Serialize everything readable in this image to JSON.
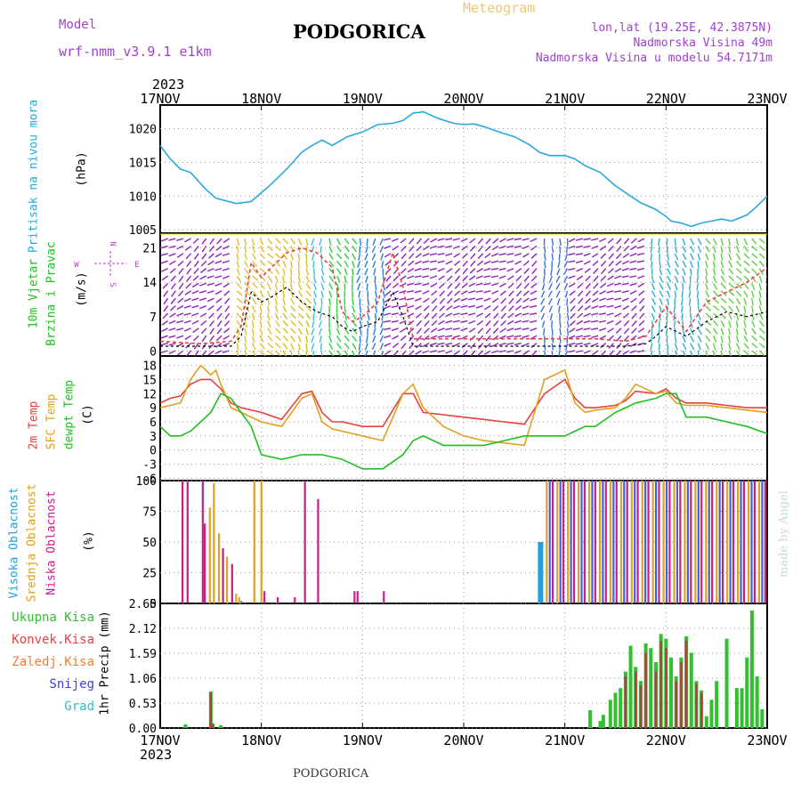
{
  "header": {
    "model_label": "Model",
    "model_name": "wrf-nmm_v3.9.1 e1km",
    "station": "PODGORICA",
    "product": "Meteogram",
    "lonlat": "lon,lat (19.25E, 42.3875N)",
    "elevation": "Nadmorska Visina 49m",
    "model_elevation": "Nadmorska Visina u modelu 54.7171m"
  },
  "footer": {
    "station": "PODGORICA",
    "credit": "made by Angel"
  },
  "colors": {
    "pressure": "#29a8e0",
    "temp2m": "#e84040",
    "sfc": "#e0a020",
    "dew": "#20c020",
    "high": "#20a0e0",
    "mid": "#e0a020",
    "low": "#c81e8c",
    "total": "#30c030",
    "conv": "#e84040",
    "frozen": "#f08030",
    "snow": "#4040e0",
    "hail": "#30c0c0"
  },
  "chart_data": [
    {
      "type": "line",
      "panel": "pressure",
      "year_label": "2023",
      "x_ticks": [
        "17NOV",
        "18NOV",
        "19NOV",
        "20NOV",
        "21NOV",
        "22NOV",
        "23NOV"
      ],
      "ylabel_main": "Pritisak na nivou mora",
      "ylabel_unit": "(hPa)",
      "ylim": [
        1004.5,
        1023.5
      ],
      "y_ticks": [
        1005,
        1010,
        1015,
        1020
      ],
      "x_unit": "days since 17NOV",
      "series": [
        {
          "color": "#29a8e0",
          "x": [
            0,
            0.1,
            0.2,
            0.3,
            0.45,
            0.55,
            0.65,
            0.75,
            0.9,
            1.0,
            1.1,
            1.25,
            1.4,
            1.5,
            1.6,
            1.7,
            1.85,
            2.0,
            2.15,
            2.3,
            2.4,
            2.5,
            2.6,
            2.75,
            2.9,
            3.0,
            3.1,
            3.2,
            3.35,
            3.5,
            3.65,
            3.75,
            3.85,
            4.0,
            4.1,
            4.2,
            4.35,
            4.5,
            4.6,
            4.75,
            4.9,
            5.0,
            5.05,
            5.15,
            5.25,
            5.35,
            5.45,
            5.55,
            5.65,
            5.8,
            5.9,
            6.0
          ],
          "y": [
            1017.5,
            1015.5,
            1014,
            1013.5,
            1011,
            1009.7,
            1009.3,
            1008.9,
            1009.2,
            1010.5,
            1011.8,
            1014,
            1016.5,
            1017.5,
            1018.3,
            1017.5,
            1018.8,
            1019.5,
            1020.6,
            1020.8,
            1021.2,
            1022.3,
            1022.5,
            1021.5,
            1020.8,
            1020.6,
            1020.7,
            1020.3,
            1019.5,
            1018.8,
            1017.6,
            1016.5,
            1016,
            1016,
            1015.5,
            1014.5,
            1013.5,
            1011.5,
            1010.5,
            1009,
            1008,
            1007,
            1006.3,
            1006,
            1005.5,
            1006,
            1006.3,
            1006.6,
            1006.3,
            1007.2,
            1008.5,
            1010
          ]
        }
      ]
    },
    {
      "type": "line",
      "panel": "wind",
      "ylabel_main": "10m Vjetar",
      "ylabel_sub": "Brzina i Pravac",
      "ylabel_unit": "(m/s)",
      "compass": {
        "n": "N",
        "e": "E",
        "s": "S",
        "w": "W"
      },
      "ylim": [
        -1,
        24
      ],
      "y_ticks": [
        0,
        7,
        14,
        21
      ],
      "x_unit": "days since 17NOV",
      "series": [
        {
          "name": "gust",
          "color": "#e84040",
          "x": [
            0,
            0.4,
            0.7,
            0.8,
            0.9,
            1.0,
            1.1,
            1.25,
            1.4,
            1.55,
            1.7,
            1.8,
            1.9,
            2.0,
            2.15,
            2.3,
            2.4,
            2.5,
            2.7,
            2.9,
            3.1,
            3.3,
            3.5,
            3.8,
            4.0,
            4.3,
            4.6,
            4.8,
            4.9,
            5.0,
            5.2,
            5.4,
            5.6,
            5.8,
            6.0
          ],
          "y": [
            2,
            1.5,
            2,
            5,
            18,
            15,
            17,
            20,
            21,
            20,
            17,
            8,
            6,
            7,
            10,
            20,
            13,
            2.5,
            2.5,
            2.5,
            2.5,
            2.5,
            2.5,
            2.5,
            2.5,
            2.5,
            2,
            3,
            6,
            9,
            4,
            10,
            12,
            14,
            17
          ]
        },
        {
          "name": "mean",
          "color": "#000000",
          "x": [
            0,
            0.4,
            0.7,
            0.8,
            0.9,
            1.0,
            1.1,
            1.25,
            1.4,
            1.55,
            1.7,
            1.8,
            1.9,
            2.0,
            2.15,
            2.3,
            2.4,
            2.5,
            2.7,
            2.9,
            3.1,
            3.3,
            3.5,
            3.8,
            4.0,
            4.3,
            4.6,
            4.8,
            4.9,
            5.0,
            5.2,
            5.4,
            5.6,
            5.8,
            6.0
          ],
          "y": [
            1,
            1,
            1,
            3,
            12,
            10,
            11,
            13,
            10,
            8,
            7,
            5,
            4,
            5,
            6,
            12,
            7,
            1,
            1,
            1,
            1,
            1,
            1,
            1,
            1,
            1,
            1,
            1.5,
            3,
            5,
            3,
            6,
            8,
            7,
            8
          ]
        }
      ]
    },
    {
      "type": "line",
      "panel": "temperature",
      "ylabel_main": "2m Temp",
      "ylabel_sub": "SFC Temp",
      "ylabel_sub2": "dewpt Temp",
      "ylabel_unit": "(C)",
      "ylim": [
        -6.5,
        20
      ],
      "y_ticks": [
        -6,
        -3,
        0,
        3,
        6,
        9,
        12,
        15,
        18
      ],
      "x_unit": "days since 17NOV",
      "series": [
        {
          "name": "2m",
          "color": "#e84040",
          "x": [
            0,
            0.1,
            0.2,
            0.3,
            0.4,
            0.5,
            0.55,
            0.6,
            0.7,
            0.8,
            1.0,
            1.2,
            1.4,
            1.5,
            1.6,
            1.7,
            1.8,
            2.0,
            2.2,
            2.4,
            2.5,
            2.6,
            2.8,
            3.0,
            3.2,
            3.4,
            3.6,
            3.8,
            4.0,
            4.1,
            4.2,
            4.3,
            4.5,
            4.6,
            4.7,
            4.9,
            5.0,
            5.1,
            5.2,
            5.4,
            5.6,
            5.8,
            6.0
          ],
          "y": [
            10,
            11,
            11.5,
            14,
            15,
            15,
            14,
            13,
            10,
            9,
            8,
            6.5,
            12,
            12.5,
            8,
            6,
            6,
            5,
            5,
            12,
            12,
            8,
            7.5,
            7,
            6.5,
            6,
            5.5,
            12,
            15,
            11,
            9,
            9,
            9.5,
            10.5,
            12.5,
            12,
            13,
            11,
            10,
            10,
            9.5,
            9,
            9
          ]
        },
        {
          "name": "sfc",
          "color": "#e0a020",
          "x": [
            0,
            0.1,
            0.2,
            0.3,
            0.4,
            0.5,
            0.55,
            0.6,
            0.7,
            0.8,
            1.0,
            1.2,
            1.4,
            1.5,
            1.6,
            1.7,
            1.8,
            2.0,
            2.2,
            2.4,
            2.5,
            2.6,
            2.8,
            3.0,
            3.2,
            3.4,
            3.6,
            3.8,
            4.0,
            4.1,
            4.2,
            4.3,
            4.5,
            4.6,
            4.7,
            4.9,
            5.0,
            5.1,
            5.2,
            5.4,
            5.6,
            5.8,
            6.0
          ],
          "y": [
            9,
            9.5,
            10,
            15,
            18,
            16,
            17,
            14,
            9,
            8,
            6,
            5,
            11,
            12,
            6,
            4.5,
            4,
            3,
            2,
            12,
            14,
            9,
            5,
            3,
            2,
            1.5,
            1,
            15,
            17,
            10,
            8,
            8.5,
            9,
            11,
            14,
            12,
            12.5,
            10,
            9.5,
            9.5,
            9,
            8.5,
            8
          ]
        },
        {
          "name": "dew",
          "color": "#20c020",
          "x": [
            0,
            0.1,
            0.2,
            0.3,
            0.4,
            0.5,
            0.55,
            0.6,
            0.7,
            0.8,
            0.9,
            1.0,
            1.2,
            1.4,
            1.6,
            1.8,
            2.0,
            2.2,
            2.4,
            2.5,
            2.6,
            2.8,
            3.0,
            3.2,
            3.4,
            3.6,
            3.8,
            4.0,
            4.1,
            4.2,
            4.3,
            4.5,
            4.6,
            4.7,
            4.9,
            5.0,
            5.1,
            5.2,
            5.4,
            5.6,
            5.8,
            6.0
          ],
          "y": [
            5,
            3,
            3,
            4,
            6,
            8,
            10,
            12,
            11,
            8,
            5,
            -1,
            -2,
            -1,
            -1,
            -2,
            -4,
            -4,
            -1,
            2,
            3,
            1,
            1,
            1,
            2,
            3,
            3,
            3,
            4,
            5,
            5,
            8,
            9,
            10,
            11,
            12,
            12,
            7,
            7,
            6,
            5,
            3.5
          ]
        }
      ]
    },
    {
      "type": "bar",
      "panel": "cloud",
      "ylabel_main": "Visoka Oblacnost",
      "ylabel_sub": "Srednja Oblacnost",
      "ylabel_sub2": "Niska Oblacnost",
      "ylabel_unit": "(%)",
      "ylim": [
        0,
        100
      ],
      "y_ticks": [
        0,
        25,
        50,
        75,
        100
      ],
      "x_unit": "days since 17NOV",
      "series": [
        {
          "name": "low",
          "color": "#c81e8c",
          "x": [
            0.22,
            0.27,
            0.42,
            0.44,
            0.62,
            0.71,
            1.03,
            1.16,
            1.33,
            1.43,
            1.56,
            1.92,
            1.95,
            2.21
          ],
          "y": [
            100,
            100,
            100,
            65,
            45,
            32,
            10,
            5,
            5,
            100,
            85,
            10,
            10,
            10
          ]
        },
        {
          "name": "mid",
          "color": "#e0a020",
          "x": [
            0.49,
            0.53,
            0.58,
            0.66,
            0.75,
            0.78,
            0.93,
            1.0
          ],
          "y": [
            78,
            98,
            57,
            38,
            8,
            5,
            100,
            100
          ]
        },
        {
          "name": "high",
          "color": "#20a0e0",
          "x": [
            0.8,
            3.76
          ],
          "y": [
            2,
            50
          ]
        },
        {
          "name": "overcast_high",
          "color": "#4060e0",
          "x_start": 3.85,
          "x_end": 6.0,
          "step": 0.105,
          "value": 100
        },
        {
          "name": "overcast_mid",
          "color": "#e0a020",
          "x_start": 3.82,
          "x_end": 6.0,
          "step": 0.105,
          "value": 100
        },
        {
          "name": "overcast_low",
          "color": "#c81e8c",
          "x_start": 3.88,
          "x_end": 6.0,
          "step": 0.105,
          "value": 100
        }
      ]
    },
    {
      "type": "bar",
      "panel": "precip",
      "legend": [
        "Ukupna Kisa",
        "Konvek.Kisa",
        "Zaledj.Kisa",
        "Snijeg",
        "Grad"
      ],
      "ylabel_main": "1hr Precip (mm)",
      "ylim": [
        0,
        2.65
      ],
      "y_ticks": [
        0,
        0.53,
        1.06,
        1.59,
        2.12,
        2.65
      ],
      "x_unit": "days since 17NOV",
      "bottom_year": "2023",
      "series": [
        {
          "name": "total",
          "color": "#30c030",
          "x": [
            0.25,
            0.5,
            0.52,
            0.6,
            4.25,
            4.35,
            4.38,
            4.45,
            4.5,
            4.55,
            4.6,
            4.65,
            4.7,
            4.75,
            4.8,
            4.85,
            4.9,
            4.95,
            5.0,
            5.05,
            5.1,
            5.15,
            5.2,
            5.25,
            5.3,
            5.35,
            5.4,
            5.45,
            5.5,
            5.6,
            5.7,
            5.75,
            5.8,
            5.85,
            5.9,
            5.95
          ],
          "y": [
            0.08,
            0.78,
            0.1,
            0.06,
            0.38,
            0.15,
            0.28,
            0.6,
            0.75,
            0.85,
            1.2,
            1.75,
            1.3,
            1.0,
            1.8,
            1.7,
            1.4,
            2.0,
            1.9,
            1.5,
            1.1,
            1.5,
            1.95,
            1.6,
            1.0,
            0.8,
            0.25,
            0.6,
            1.0,
            1.9,
            0.85,
            0.85,
            1.5,
            2.5,
            1.1,
            0.4
          ]
        },
        {
          "name": "conv",
          "color": "#b04040",
          "x": [
            0.5,
            0.52,
            4.6,
            4.7,
            4.75,
            4.8,
            4.9,
            4.95,
            5.0,
            5.1,
            5.15,
            5.2,
            5.3,
            5.35
          ],
          "y": [
            0.75,
            0.08,
            1.1,
            1.2,
            0.9,
            1.6,
            1.2,
            1.85,
            1.7,
            1.0,
            1.4,
            1.85,
            0.95,
            0.75
          ]
        }
      ]
    }
  ]
}
